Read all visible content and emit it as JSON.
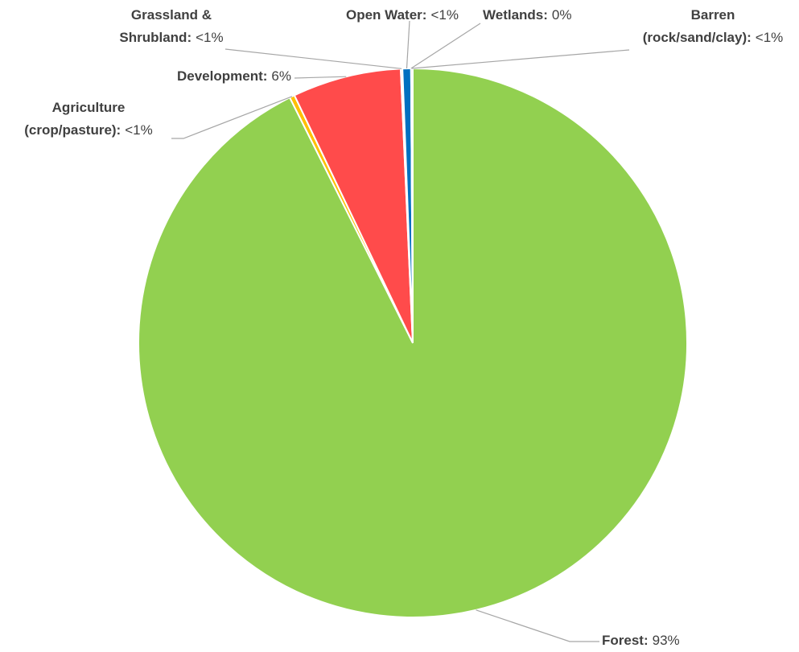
{
  "chart_data": {
    "type": "pie",
    "categories": [
      [
        "Forest:"
      ],
      [
        "Agriculture",
        "(crop/pasture):"
      ],
      [
        "Development:"
      ],
      [
        "Grassland &",
        "Shrubland:"
      ],
      [
        "Open Water:"
      ],
      [
        "Wetlands:"
      ],
      [
        "Barren",
        "(rock/sand/clay):"
      ]
    ],
    "values": [
      92.6,
      0.3,
      6.4,
      0.1,
      0.5,
      0,
      0.1
    ],
    "value_labels": [
      "93%",
      "<1%",
      "6%",
      "<1%",
      "<1%",
      "0%",
      "<1%"
    ],
    "colors": [
      "#92d050",
      "#ffc000",
      "#ff4b4b",
      "#c9a66b",
      "#0070c0",
      "#2e9c8f",
      "#a5a5a5"
    ]
  }
}
